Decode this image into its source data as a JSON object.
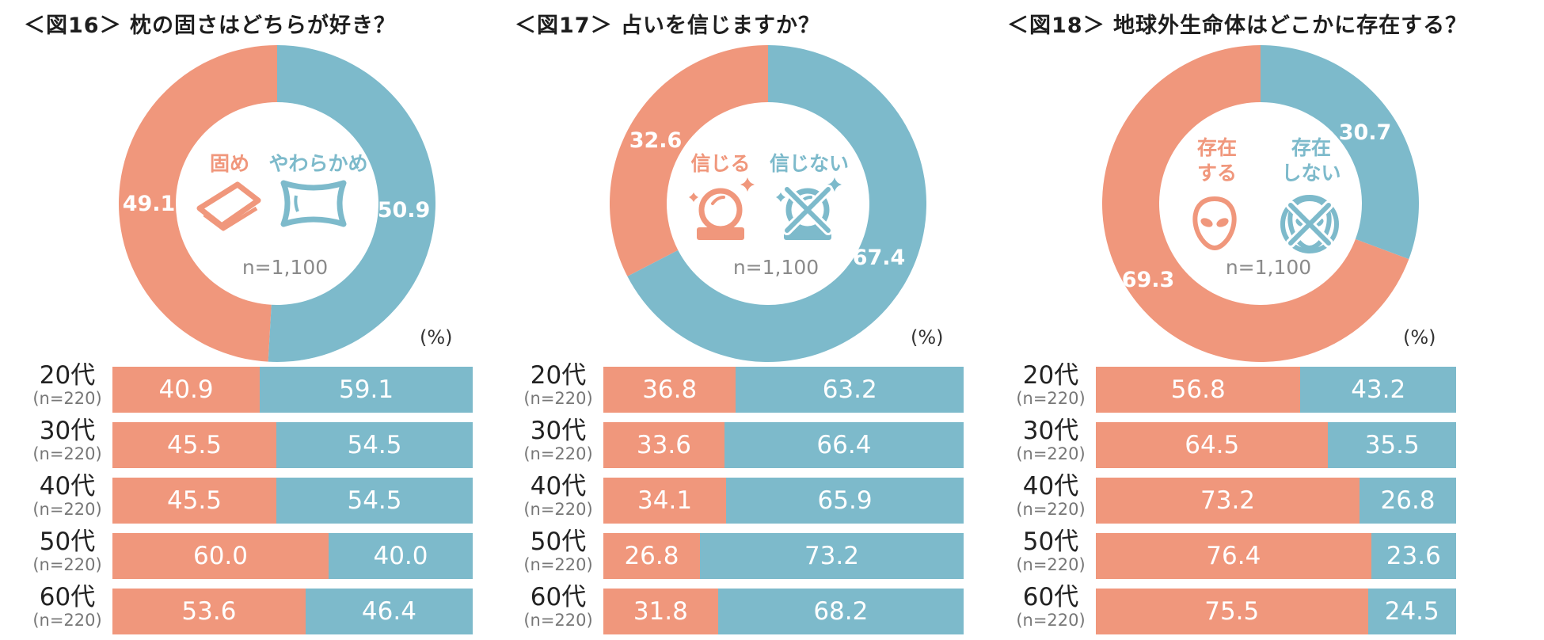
{
  "colors": {
    "option_a": "#f0977c",
    "option_b": "#7dbacb"
  },
  "chart_data": [
    {
      "type": "pie",
      "title": "＜図16＞ 枕の固さはどちらが好き？",
      "sample_note": "n=1,100",
      "unit_label": "(%)",
      "labels": [
        "固め",
        "やわらかめ"
      ],
      "values": [
        49.1,
        50.9
      ],
      "icons": [
        "firm-pillow-icon",
        "soft-pillow-icon"
      ],
      "breakdown": {
        "type": "bar",
        "stacked": true,
        "categories": [
          "20代",
          "30代",
          "40代",
          "50代",
          "60代"
        ],
        "category_notes": [
          "(n=220)",
          "(n=220)",
          "(n=220)",
          "(n=220)",
          "(n=220)"
        ],
        "series": [
          {
            "name": "固め",
            "values": [
              40.9,
              45.5,
              45.5,
              60.0,
              53.6
            ]
          },
          {
            "name": "やわらかめ",
            "values": [
              59.1,
              54.5,
              54.5,
              40.0,
              46.4
            ]
          }
        ]
      }
    },
    {
      "type": "pie",
      "title": "＜図17＞ 占いを信じますか？",
      "sample_note": "n=1,100",
      "unit_label": "(%)",
      "labels": [
        "信じる",
        "信じない"
      ],
      "values": [
        32.6,
        67.4
      ],
      "icons": [
        "crystal-ball-icon",
        "crossed-crystal-ball-icon"
      ],
      "breakdown": {
        "type": "bar",
        "stacked": true,
        "categories": [
          "20代",
          "30代",
          "40代",
          "50代",
          "60代"
        ],
        "category_notes": [
          "(n=220)",
          "(n=220)",
          "(n=220)",
          "(n=220)",
          "(n=220)"
        ],
        "series": [
          {
            "name": "信じる",
            "values": [
              36.8,
              33.6,
              34.1,
              26.8,
              31.8
            ]
          },
          {
            "name": "信じない",
            "values": [
              63.2,
              66.4,
              65.9,
              73.2,
              68.2
            ]
          }
        ]
      }
    },
    {
      "type": "pie",
      "title": "＜図18＞ 地球外生命体はどこかに存在する？",
      "sample_note": "n=1,100",
      "unit_label": "(%)",
      "labels": [
        "存在する",
        "存在しない"
      ],
      "values": [
        69.3,
        30.7
      ],
      "icons": [
        "alien-icon",
        "crossed-alien-icon"
      ],
      "breakdown": {
        "type": "bar",
        "stacked": true,
        "categories": [
          "20代",
          "30代",
          "40代",
          "50代",
          "60代"
        ],
        "category_notes": [
          "(n=220)",
          "(n=220)",
          "(n=220)",
          "(n=220)",
          "(n=220)"
        ],
        "series": [
          {
            "name": "存在する",
            "values": [
              56.8,
              64.5,
              73.2,
              76.4,
              75.5
            ]
          },
          {
            "name": "存在しない",
            "values": [
              43.2,
              35.5,
              26.8,
              23.6,
              24.5
            ]
          }
        ]
      }
    }
  ]
}
